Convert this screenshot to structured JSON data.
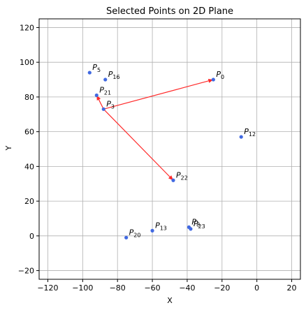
{
  "chart_data": {
    "type": "scatter",
    "title": "Selected Points on 2D Plane",
    "xlabel": "X",
    "ylabel": "Y",
    "xlim": [
      -125,
      25
    ],
    "ylim": [
      -25,
      125
    ],
    "xticks": [
      -120,
      -100,
      -80,
      -60,
      -40,
      -20,
      0,
      20
    ],
    "yticks": [
      -20,
      0,
      20,
      40,
      60,
      80,
      100,
      120
    ],
    "grid": true,
    "point_color": "#4169e1",
    "arrow_color": "#ff2a2a",
    "points": [
      {
        "label": "P",
        "sub": "0",
        "x": -25,
        "y": 90
      },
      {
        "label": "P",
        "sub": "3",
        "x": -88,
        "y": 73
      },
      {
        "label": "P",
        "sub": "5",
        "x": -96,
        "y": 94
      },
      {
        "label": "P",
        "sub": "12",
        "x": -9,
        "y": 57
      },
      {
        "label": "P",
        "sub": "13",
        "x": -60,
        "y": 3
      },
      {
        "label": "P",
        "sub": "16",
        "x": -87,
        "y": 90
      },
      {
        "label": "P",
        "sub": "20",
        "x": -75,
        "y": -1
      },
      {
        "label": "P",
        "sub": "21",
        "x": -92,
        "y": 81
      },
      {
        "label": "P",
        "sub": "22",
        "x": -48,
        "y": 32
      },
      {
        "label": "P",
        "sub": "8",
        "x": -39,
        "y": 5
      },
      {
        "label": "P",
        "sub": "23",
        "x": -38,
        "y": 4
      }
    ],
    "arrows": [
      {
        "from": [
          -88,
          73
        ],
        "to": [
          -25,
          90
        ]
      },
      {
        "from": [
          -88,
          73
        ],
        "to": [
          -92,
          81
        ]
      },
      {
        "from": [
          -88,
          73
        ],
        "to": [
          -48,
          32
        ]
      }
    ]
  }
}
